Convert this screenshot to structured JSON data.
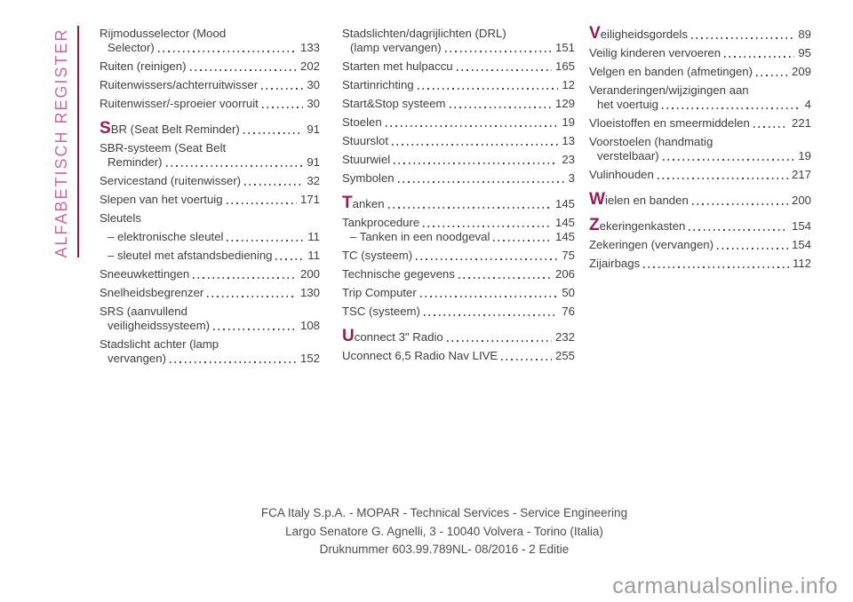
{
  "sidebar": {
    "label": "ALFABETISCH REGISTER"
  },
  "colors": {
    "accent_magenta": "#9b1b54",
    "sidebar_pink": "#c86b9e",
    "sidebar_rule": "#8e1b4f",
    "body_text": "#3f3f3f",
    "watermark_gray": "#9c9c9c"
  },
  "columns": [
    {
      "entries": [
        {
          "label": "Rijmodusselector (Mood",
          "label2": "Selector)",
          "page": "133"
        },
        {
          "label": "Ruiten (reinigen)",
          "page": "202"
        },
        {
          "label": "Ruitenwissers/achterruitwisser",
          "page": "30"
        },
        {
          "label": "Ruitenwisser/-sproeier voorruit",
          "page": "30"
        },
        {
          "label": "SBR (Seat Belt Reminder)",
          "page": "91",
          "initial": true,
          "section": true
        },
        {
          "label": "SBR-systeem (Seat Belt",
          "label2": "Reminder)",
          "page": "91"
        },
        {
          "label": "Servicestand (ruitenwisser)",
          "page": "32"
        },
        {
          "label": "Slepen van het voertuig",
          "page": "171"
        },
        {
          "label": "Sleutels"
        },
        {
          "label": "– elektronische sleutel",
          "page": "11",
          "sub": true
        },
        {
          "label": "– sleutel met afstandsbediening",
          "page": "11",
          "sub": true
        },
        {
          "label": "Sneeuwkettingen",
          "page": "200"
        },
        {
          "label": "Snelheidsbegrenzer",
          "page": "130"
        },
        {
          "label": "SRS (aanvullend",
          "label2": "veiligheidssysteem)",
          "page": "108"
        },
        {
          "label": "Stadslicht achter (lamp",
          "label2": "vervangen)",
          "page": "152"
        }
      ]
    },
    {
      "entries": [
        {
          "label": "Stadslichten/dagrijlichten (DRL)",
          "label2": "(lamp vervangen)",
          "page": "151"
        },
        {
          "label": "Starten met hulpaccu",
          "page": "165"
        },
        {
          "label": "Startinrichting",
          "page": "12"
        },
        {
          "label": "Start&Stop systeem",
          "page": "129"
        },
        {
          "label": "Stoelen",
          "page": "19"
        },
        {
          "label": "Stuurslot",
          "page": "13"
        },
        {
          "label": "Stuurwiel",
          "page": "23"
        },
        {
          "label": "Symbolen",
          "page": "3"
        },
        {
          "label": "Tanken",
          "page": "145",
          "initial": true,
          "section": true
        },
        {
          "label": "Tankprocedure",
          "page": "145"
        },
        {
          "label": "– Tanken in een noodgeval",
          "page": "145",
          "sub": true,
          "tight": true
        },
        {
          "label": "TC (systeem)",
          "page": "75"
        },
        {
          "label": "Technische gegevens",
          "page": "206"
        },
        {
          "label": "Trip Computer",
          "page": "50"
        },
        {
          "label": "TSC (systeem)",
          "page": "76"
        },
        {
          "label": "Uconnect 3\" Radio",
          "page": "232",
          "initial": true,
          "section": true
        },
        {
          "label": "Uconnect 6,5 Radio Nav LIVE",
          "page": "255"
        }
      ]
    },
    {
      "entries": [
        {
          "label": "Veiligheidsgordels",
          "page": "89",
          "initial": true
        },
        {
          "label": "Veilig kinderen vervoeren",
          "page": "95"
        },
        {
          "label": "Velgen en banden (afmetingen)",
          "page": "209"
        },
        {
          "label": "Veranderingen/wijzigingen aan",
          "label2": "het voertuig",
          "page": "4"
        },
        {
          "label": "Vloeistoffen en smeermiddelen",
          "page": "221"
        },
        {
          "label": "Voorstoelen (handmatig",
          "label2": "verstelbaar)",
          "page": "19"
        },
        {
          "label": "Vulinhouden",
          "page": "217"
        },
        {
          "label": "Wielen en banden",
          "page": "200",
          "initial": true,
          "section": true
        },
        {
          "label": "Zekeringenkasten",
          "page": "154",
          "initial": true,
          "section": true
        },
        {
          "label": "Zekeringen (vervangen)",
          "page": "154"
        },
        {
          "label": "Zijairbags",
          "page": "112"
        }
      ]
    }
  ],
  "footer": {
    "lines": [
      "FCA Italy S.p.A. - MOPAR - Technical Services - Service Engineering",
      "Largo Senatore G. Agnelli, 3 - 10040 Volvera - Torino (Italia)",
      "Druknummer 603.99.789NL- 08/2016 - 2 Editie"
    ]
  },
  "watermark": "carmanualsonline.info"
}
